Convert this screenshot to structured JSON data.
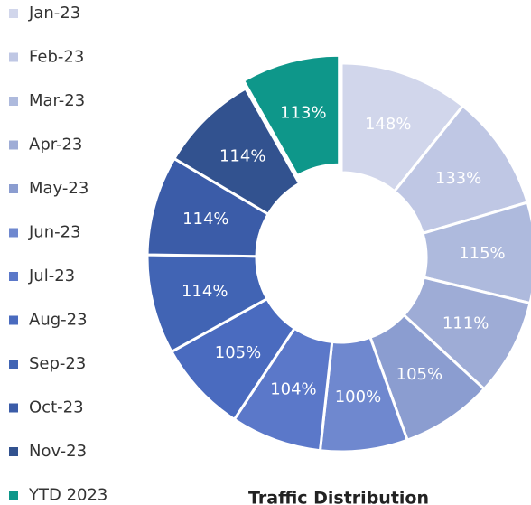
{
  "chart_data": {
    "type": "donut",
    "title": "Traffic Distribution",
    "categories": [
      "Jan-23",
      "Feb-23",
      "Mar-23",
      "Apr-23",
      "May-23",
      "Jun-23",
      "Jul-23",
      "Aug-23",
      "Sep-23",
      "Oct-23",
      "Nov-23",
      "YTD 2023"
    ],
    "values": [
      148,
      133,
      115,
      111,
      105,
      100,
      104,
      105,
      114,
      114,
      114,
      113
    ],
    "value_labels": [
      "148%",
      "133%",
      "115%",
      "111%",
      "105%",
      "100%",
      "104%",
      "105%",
      "114%",
      "114%",
      "114%",
      "113%"
    ],
    "colors": [
      "#d1d6eb",
      "#bfc7e4",
      "#aebadd",
      "#9eacd6",
      "#8b9dd0",
      "#6f88cf",
      "#5b78c9",
      "#4a6bbf",
      "#4164b4",
      "#3b5ca8",
      "#32528f",
      "#0e978a"
    ],
    "exploded": [
      11
    ]
  }
}
